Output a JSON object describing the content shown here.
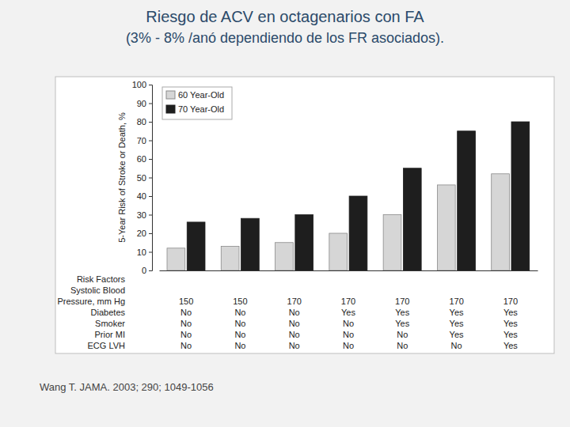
{
  "chart_data": {
    "type": "bar",
    "title": "Riesgo de ACV en octagenarios con FA",
    "subtitle": "(3% - 8% /anó dependiendo de los FR asociados).",
    "ylabel": "5-Year Risk of Stroke or Death, %",
    "categories": [
      null,
      null,
      null,
      null,
      null,
      null,
      null
    ],
    "series": [
      {
        "name": "60 Year-Old",
        "color": "#d6d6d6",
        "values": [
          12,
          13,
          15,
          20,
          30,
          46,
          52
        ]
      },
      {
        "name": "70 Year-Old",
        "color": "#1e1e1e",
        "values": [
          26,
          28,
          30,
          40,
          55,
          75,
          80
        ]
      }
    ],
    "ylim": [
      0,
      100
    ],
    "yticks": [
      0,
      10,
      20,
      30,
      40,
      50,
      60,
      70,
      80,
      90,
      100
    ],
    "grid": false,
    "legend": "upper left",
    "table": {
      "title": "Risk Factors",
      "rows": [
        {
          "label": [
            "Systolic Blood",
            "Pressure, mm Hg"
          ],
          "values": [
            150,
            150,
            170,
            170,
            170,
            170,
            170
          ]
        },
        {
          "label": [
            "Diabetes"
          ],
          "values": [
            "No",
            "No",
            "No",
            "Yes",
            "Yes",
            "Yes",
            "Yes"
          ]
        },
        {
          "label": [
            "Smoker"
          ],
          "values": [
            "No",
            "No",
            "No",
            "No",
            "Yes",
            "Yes",
            "Yes"
          ]
        },
        {
          "label": [
            "Prior MI"
          ],
          "values": [
            "No",
            "No",
            "No",
            "No",
            "No",
            "Yes",
            "Yes"
          ]
        },
        {
          "label": [
            "ECG LVH"
          ],
          "values": [
            "No",
            "No",
            "No",
            "No",
            "No",
            "No",
            "Yes"
          ]
        }
      ]
    },
    "annotations": [
      "Wang T. JAMA. 2003; 290; 1049-1056"
    ]
  }
}
